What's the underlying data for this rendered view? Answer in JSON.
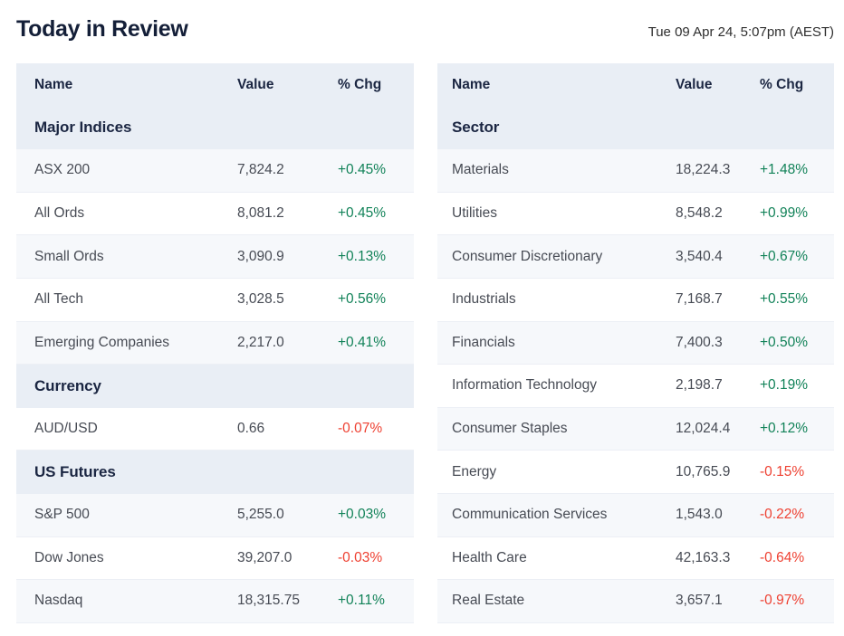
{
  "header": {
    "title": "Today in Review",
    "timestamp": "Tue 09 Apr 24, 5:07pm (AEST)"
  },
  "columns": {
    "name": "Name",
    "value": "Value",
    "chg": "% Chg"
  },
  "colors": {
    "positive": "#118258",
    "negative": "#ee4132",
    "header_bg": "#e9eef5",
    "shaded_row_bg": "#f6f8fb",
    "heading_text": "#141f38"
  },
  "left_table": {
    "sections": [
      {
        "label": "Major Indices",
        "rows": [
          {
            "name": "ASX 200",
            "value": "7,824.2",
            "chg": "+0.45%"
          },
          {
            "name": "All Ords",
            "value": "8,081.2",
            "chg": "+0.45%"
          },
          {
            "name": "Small Ords",
            "value": "3,090.9",
            "chg": "+0.13%"
          },
          {
            "name": "All Tech",
            "value": "3,028.5",
            "chg": "+0.56%"
          },
          {
            "name": "Emerging Companies",
            "value": "2,217.0",
            "chg": "+0.41%"
          }
        ]
      },
      {
        "label": "Currency",
        "rows": [
          {
            "name": "AUD/USD",
            "value": "0.66",
            "chg": "-0.07%"
          }
        ]
      },
      {
        "label": "US Futures",
        "rows": [
          {
            "name": "S&P 500",
            "value": "5,255.0",
            "chg": "+0.03%"
          },
          {
            "name": "Dow Jones",
            "value": "39,207.0",
            "chg": "-0.03%"
          },
          {
            "name": "Nasdaq",
            "value": "18,315.75",
            "chg": "+0.11%"
          }
        ]
      }
    ]
  },
  "right_table": {
    "sections": [
      {
        "label": "Sector",
        "rows": [
          {
            "name": "Materials",
            "value": "18,224.3",
            "chg": "+1.48%"
          },
          {
            "name": "Utilities",
            "value": "8,548.2",
            "chg": "+0.99%"
          },
          {
            "name": "Consumer Discretionary",
            "value": "3,540.4",
            "chg": "+0.67%"
          },
          {
            "name": "Industrials",
            "value": "7,168.7",
            "chg": "+0.55%"
          },
          {
            "name": "Financials",
            "value": "7,400.3",
            "chg": "+0.50%"
          },
          {
            "name": "Information Technology",
            "value": "2,198.7",
            "chg": "+0.19%"
          },
          {
            "name": "Consumer Staples",
            "value": "12,024.4",
            "chg": "+0.12%"
          },
          {
            "name": "Energy",
            "value": "10,765.9",
            "chg": "-0.15%"
          },
          {
            "name": "Communication Services",
            "value": "1,543.0",
            "chg": "-0.22%"
          },
          {
            "name": "Health Care",
            "value": "42,163.3",
            "chg": "-0.64%"
          },
          {
            "name": "Real Estate",
            "value": "3,657.1",
            "chg": "-0.97%"
          }
        ]
      }
    ]
  }
}
